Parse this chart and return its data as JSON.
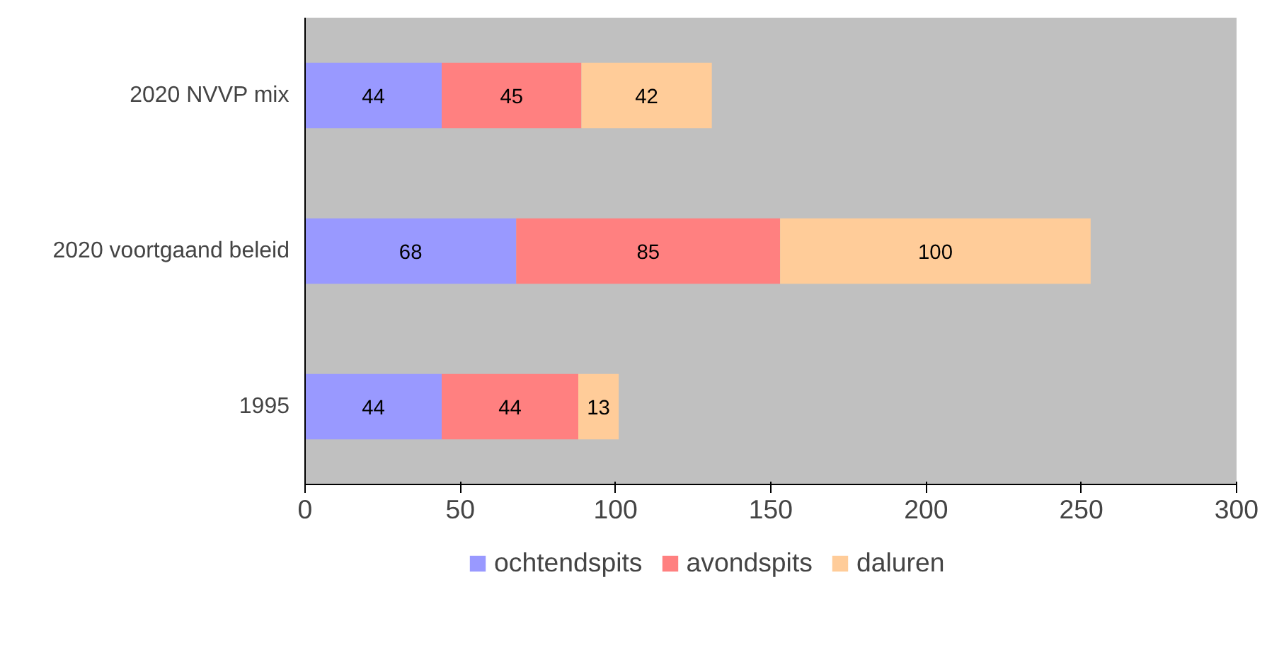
{
  "chart_data": {
    "type": "bar",
    "orientation": "horizontal",
    "stacked": true,
    "data_labels": true,
    "grid": false,
    "legend": "bottom",
    "categories": [
      "2020 NVVP mix",
      "2020 voortgaand beleid",
      "1995"
    ],
    "xlim": [
      0,
      300
    ],
    "xticks": [
      0,
      50,
      100,
      150,
      200,
      250,
      300
    ],
    "series": [
      {
        "name": "ochtendspits",
        "color": "#9999ff",
        "values": [
          44,
          68,
          44
        ]
      },
      {
        "name": "avondspits",
        "color": "#ff8080",
        "values": [
          45,
          85,
          44
        ]
      },
      {
        "name": "daluren",
        "color": "#ffcc99",
        "values": [
          42,
          100,
          13
        ]
      }
    ]
  }
}
